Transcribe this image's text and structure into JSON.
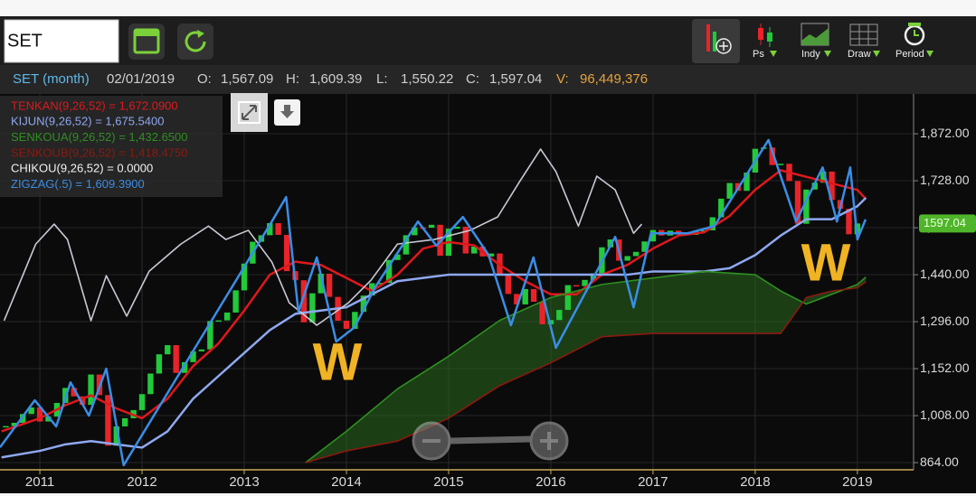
{
  "toolbar": {
    "symbol_input": "SET",
    "buttons": [
      "Ps",
      "Indy",
      "Draw",
      "Period"
    ]
  },
  "info_bar": {
    "symbol": "SET (month)",
    "date": "02/01/2019",
    "fields": [
      {
        "label": "O:",
        "value": "1,567.09"
      },
      {
        "label": "H:",
        "value": "1,609.39"
      },
      {
        "label": "L:",
        "value": "1,550.22"
      },
      {
        "label": "C:",
        "value": "1,597.04"
      },
      {
        "label": "V:",
        "value": "96,449,376"
      }
    ]
  },
  "chart_data": {
    "type": "candlestick",
    "xlim": [
      2010.61,
      2019.55
    ],
    "ylim": [
      842,
      1994
    ],
    "xticks": [
      2011,
      2012,
      2013,
      2014,
      2015,
      2016,
      2017,
      2018,
      2019
    ],
    "yticks": [
      {
        "value": 864,
        "label": "864.00"
      },
      {
        "value": 1008,
        "label": "1,008.00"
      },
      {
        "value": 1152,
        "label": "1,152.00"
      },
      {
        "value": 1296,
        "label": "1,296.00"
      },
      {
        "value": 1440,
        "label": "1,440.00"
      },
      {
        "value": 1584,
        "label": "1,584.00"
      },
      {
        "value": 1728,
        "label": "1,728.00"
      },
      {
        "value": 1872,
        "label": "1,872.00"
      }
    ],
    "grid": true,
    "last_price": 1597.04,
    "annotations": [
      "W",
      "W"
    ],
    "candles": {
      "up_color": "#22c93a",
      "down_color": "#e8232a",
      "x": [
        2010.667,
        2010.75,
        2010.833,
        2010.917,
        2011,
        2011.083,
        2011.167,
        2011.25,
        2011.333,
        2011.417,
        2011.5,
        2011.583,
        2011.667,
        2011.75,
        2011.833,
        2011.917,
        2012,
        2012.083,
        2012.167,
        2012.25,
        2012.333,
        2012.417,
        2012.5,
        2012.583,
        2012.667,
        2012.75,
        2012.833,
        2012.917,
        2013,
        2013.083,
        2013.167,
        2013.25,
        2013.333,
        2013.417,
        2013.5,
        2013.583,
        2013.667,
        2013.75,
        2013.833,
        2013.917,
        2014,
        2014.083,
        2014.167,
        2014.25,
        2014.333,
        2014.417,
        2014.5,
        2014.583,
        2014.667,
        2014.75,
        2014.833,
        2014.917,
        2015,
        2015.083,
        2015.167,
        2015.25,
        2015.333,
        2015.417,
        2015.5,
        2015.583,
        2015.667,
        2015.75,
        2015.833,
        2015.917,
        2016,
        2016.083,
        2016.167,
        2016.25,
        2016.333,
        2016.417,
        2016.5,
        2016.583,
        2016.667,
        2016.75,
        2016.833,
        2016.917,
        2017,
        2017.083,
        2017.167,
        2017.25,
        2017.333,
        2017.417,
        2017.5,
        2017.583,
        2017.667,
        2017.75,
        2017.833,
        2017.917,
        2018,
        2018.083,
        2018.167,
        2018.25,
        2018.333,
        2018.417,
        2018.5,
        2018.583,
        2018.667,
        2018.75,
        2018.833,
        2018.917,
        2019
      ],
      "close": [
        976,
        986,
        1013,
        1033,
        990,
        1005,
        1047,
        1093,
        1067,
        1041,
        1134,
        1071,
        916,
        975,
        1000,
        1025,
        1074,
        1137,
        1196,
        1224,
        1139,
        1172,
        1205,
        1211,
        1298,
        1300,
        1324,
        1392,
        1474,
        1541,
        1561,
        1598,
        1562,
        1451,
        1423,
        1294,
        1383,
        1443,
        1372,
        1299,
        1274,
        1326,
        1376,
        1414,
        1415,
        1485,
        1502,
        1561,
        1585,
        1584,
        1593,
        1498,
        1581,
        1587,
        1505,
        1526,
        1496,
        1505,
        1440,
        1381,
        1349,
        1396,
        1357,
        1288,
        1301,
        1332,
        1408,
        1405,
        1424,
        1444,
        1524,
        1548,
        1483,
        1497,
        1510,
        1542,
        1577,
        1560,
        1575,
        1566,
        1562,
        1575,
        1576,
        1616,
        1673,
        1721,
        1697,
        1753,
        1826,
        1830,
        1776,
        1780,
        1727,
        1596,
        1701,
        1722,
        1756,
        1669,
        1642,
        1563.88,
        1597.04
      ]
    },
    "series": [
      {
        "name": "TENKAN(9,26,52) = 1,672.0900",
        "color": "#e0181b",
        "x": [
          2010.625,
          2011,
          2011.25,
          2011.5,
          2011.75,
          2012,
          2012.25,
          2012.5,
          2012.75,
          2013,
          2013.25,
          2013.5,
          2013.75,
          2014,
          2014.25,
          2014.5,
          2014.75,
          2015,
          2015.25,
          2015.5,
          2015.75,
          2016,
          2016.25,
          2016.5,
          2016.75,
          2017,
          2017.25,
          2017.5,
          2017.75,
          2018,
          2018.25,
          2018.5,
          2018.75,
          2019,
          2019.083
        ],
        "values": [
          960,
          1000,
          1040,
          1070,
          1030,
          1000,
          1060,
          1160,
          1230,
          1330,
          1440,
          1480,
          1470,
          1430,
          1390,
          1440,
          1520,
          1540,
          1530,
          1470,
          1420,
          1380,
          1380,
          1440,
          1470,
          1520,
          1560,
          1570,
          1620,
          1700,
          1760,
          1740,
          1720,
          1700,
          1672.09
        ]
      },
      {
        "name": "KIJUN(9,26,52) = 1,675.5400",
        "color": "#8fa8f0",
        "x": [
          2010.625,
          2011,
          2011.25,
          2011.5,
          2011.75,
          2012,
          2012.25,
          2012.5,
          2012.75,
          2013,
          2013.25,
          2013.5,
          2013.75,
          2014,
          2014.25,
          2014.5,
          2014.75,
          2015,
          2015.25,
          2015.5,
          2015.75,
          2016,
          2016.25,
          2016.5,
          2016.75,
          2017,
          2017.25,
          2017.5,
          2017.75,
          2018,
          2018.25,
          2018.5,
          2018.75,
          2019,
          2019.083
        ],
        "values": [
          880,
          900,
          920,
          930,
          920,
          910,
          960,
          1060,
          1130,
          1200,
          1270,
          1320,
          1330,
          1340,
          1380,
          1420,
          1430,
          1440,
          1440,
          1440,
          1440,
          1440,
          1440,
          1440,
          1440,
          1450,
          1450,
          1450,
          1460,
          1500,
          1560,
          1610,
          1610,
          1650,
          1675.54
        ]
      },
      {
        "name": "SENKOUA(9,26,52) = 1,432.6500",
        "color": "#2f8f22",
        "x": [
          2013.6,
          2014,
          2014.5,
          2015,
          2015.5,
          2016,
          2016.5,
          2017,
          2017.5,
          2018,
          2018.25,
          2018.5,
          2018.75,
          2019,
          2019.083
        ],
        "values": [
          864,
          960,
          1090,
          1190,
          1300,
          1370,
          1410,
          1430,
          1450,
          1440,
          1390,
          1350,
          1380,
          1410,
          1432.65
        ]
      },
      {
        "name": "SENKOUB(9,26,52) = 1,418.4750",
        "color": "#8b1a10",
        "x": [
          2013.6,
          2014,
          2014.5,
          2015,
          2015.5,
          2016,
          2016.5,
          2017,
          2017.5,
          2018,
          2018.25,
          2018.5,
          2018.75,
          2019,
          2019.083
        ],
        "values": [
          864,
          900,
          930,
          1000,
          1100,
          1170,
          1250,
          1260,
          1260,
          1260,
          1260,
          1370,
          1390,
          1400,
          1418.475
        ]
      },
      {
        "name": "CHIKOU(9,26,52) = 0.0000",
        "color": "#c9c9d6",
        "x": [
          2010.65,
          2010.96,
          2011.14,
          2011.27,
          2011.5,
          2011.65,
          2011.85,
          2012.07,
          2012.38,
          2012.65,
          2012.82,
          2013.04,
          2013.27,
          2013.44,
          2013.71,
          2014.02,
          2014.24,
          2014.5,
          2014.86,
          2015.21,
          2015.48,
          2015.7,
          2015.9,
          2016.05,
          2016.27,
          2016.45,
          2016.63,
          2016.81,
          2016.89
        ],
        "values": [
          1299,
          1534,
          1595,
          1548,
          1299,
          1437,
          1313,
          1451,
          1534,
          1589,
          1548,
          1576,
          1479,
          1354,
          1285,
          1354,
          1423,
          1534,
          1548,
          1576,
          1617,
          1728,
          1825,
          1756,
          1589,
          1742,
          1700,
          1567,
          1595
        ]
      },
      {
        "name": "ZIGZAG(.5) = 1,609.3900",
        "color": "#3a8ee6",
        "x": [
          2010.61,
          2010.95,
          2011.16,
          2011.3,
          2011.48,
          2011.65,
          2011.82,
          2013.27,
          2013.41,
          2013.53,
          2013.71,
          2013.9,
          2014.08,
          2014.28,
          2014.7,
          2014.88,
          2015.14,
          2015.39,
          2015.61,
          2015.83,
          2016.05,
          2016.63,
          2016.81,
          2016.98,
          2017.34,
          2017.6,
          2018.13,
          2018.4,
          2018.66,
          2018.8,
          2018.93,
          2019,
          2019.08
        ],
        "values": [
          911,
          1055,
          975,
          1110,
          1008,
          1152,
          856,
          1603,
          1678,
          1326,
          1493,
          1235,
          1279,
          1401,
          1603,
          1529,
          1617,
          1501,
          1285,
          1493,
          1216,
          1556,
          1340,
          1567,
          1567,
          1589,
          1853,
          1603,
          1769,
          1603,
          1769,
          1548,
          1609.39
        ]
      }
    ]
  }
}
